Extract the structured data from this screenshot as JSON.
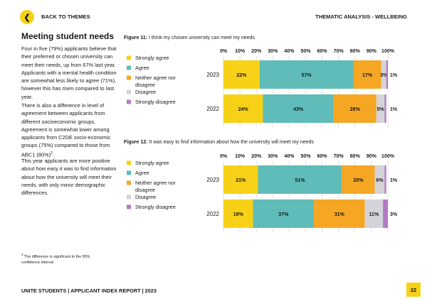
{
  "header": {
    "back_label": "BACK TO THEMES",
    "back_icon": "chevron-left-icon",
    "section": "THEMATIC ANALYSIS - WELLBEING"
  },
  "main": {
    "title": "Meeting student needs",
    "paragraph1": "Four in five (79%) applicants believe that their preferred or chosen university can meet their needs, up from 67% last year. Applicants with a mental health condition are somewhat less likely to agree (71%), however this has risen compared to last year.",
    "paragraph2": "There is also a difference in level of agreement between applicants from different socioeconomic groups. Agreement is somewhat lower among applicants from C2DE socio-economic groups (75%) compared to those from ABC1 (80%)",
    "paragraph2_sup": "2",
    "paragraph2_end": ".",
    "paragraph3": "This year applicants are more positive about how easy it was to find information about how the university will meet their needs, with only minor demographic differences.",
    "footnote_sup": "2",
    "footnote": " The difference is significant to the 95% confidence interval"
  },
  "footer": {
    "report": "UNITE STUDENTS | APPLICANT INDEX REPORT | 2023",
    "page": "22"
  },
  "colors": {
    "strongly_agree": "#f7d117",
    "agree": "#5fbcb8",
    "neither": "#f5a623",
    "disagree": "#d3d3d8",
    "strongly_disagree": "#b27ac4",
    "accent": "#f7d117"
  },
  "chart_data": [
    {
      "type": "bar",
      "orientation": "horizontal-stacked",
      "title_prefix": "Figure 11:",
      "title": "I think my chosen university can meet my needs",
      "categories": [
        "2023",
        "2022"
      ],
      "x_ticks": [
        "0%",
        "10%",
        "20%",
        "30%",
        "40%",
        "50%",
        "60%",
        "70%",
        "80%",
        "90%",
        "100%"
      ],
      "xlim": [
        0,
        100
      ],
      "series": [
        {
          "name": "Strongly agree",
          "values": [
            22,
            24
          ]
        },
        {
          "name": "Agree",
          "values": [
            57,
            43
          ]
        },
        {
          "name": "Neither agree nor disagree",
          "values": [
            17,
            26
          ]
        },
        {
          "name": "Disagree",
          "values": [
            3,
            5
          ]
        },
        {
          "name": "Strongly disagree",
          "values": [
            1,
            1
          ]
        }
      ],
      "legend_position": "left"
    },
    {
      "type": "bar",
      "orientation": "horizontal-stacked",
      "title_prefix": "Figure 12:",
      "title": "It was easy to find information about how the university will meet my needs",
      "categories": [
        "2023",
        "2022"
      ],
      "x_ticks": [
        "0%",
        "10%",
        "20%",
        "30%",
        "40%",
        "50%",
        "60%",
        "70%",
        "80%",
        "90%",
        "100%"
      ],
      "xlim": [
        0,
        100
      ],
      "series": [
        {
          "name": "Strongly agree",
          "values": [
            21,
            18
          ]
        },
        {
          "name": "Agree",
          "values": [
            51,
            37
          ]
        },
        {
          "name": "Neither agree nor disagree",
          "values": [
            20,
            31
          ]
        },
        {
          "name": "Disagree",
          "values": [
            6,
            11
          ]
        },
        {
          "name": "Strongly disagree",
          "values": [
            1,
            3
          ]
        }
      ],
      "legend_position": "left"
    }
  ]
}
